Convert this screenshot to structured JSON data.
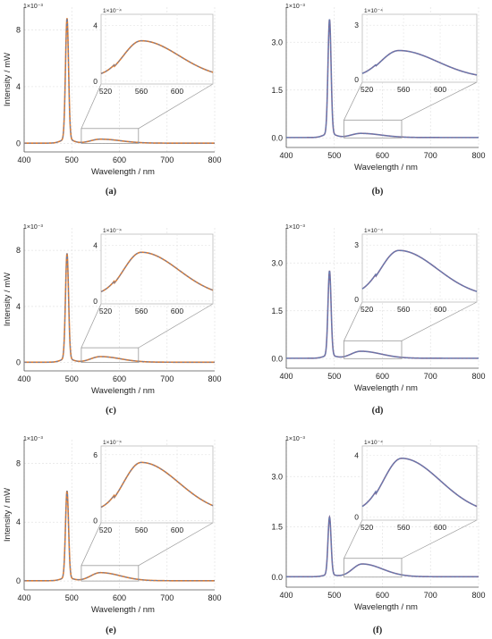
{
  "figure": {
    "panels": [
      {
        "label": "(a)",
        "chart_data": {
          "type": "line",
          "xlabel": "Wavelength / nm",
          "ylabel": "Intensity / mW",
          "scale_label": "1×10⁻³",
          "xlim": [
            400,
            800
          ],
          "ylim": [
            -0.6,
            9.6
          ],
          "xticks": [
            400,
            500,
            600,
            700,
            800
          ],
          "yticks": [
            0,
            4,
            8
          ],
          "ytick_labels": [
            "0",
            "4",
            "8"
          ],
          "grid": true,
          "peak": {
            "center": 490,
            "height": 8.5
          },
          "emission": {
            "center": 560,
            "height": 0.28
          },
          "baseline": 0.05,
          "inset": {
            "scale_label": "1×10⁻⁴",
            "xlim": [
              515,
              640
            ],
            "ylim": [
              -0.2,
              4.8
            ],
            "xticks": [
              520,
              560,
              600
            ],
            "yticks": [
              0,
              4
            ],
            "ytick_labels": [
              "0",
              "4"
            ],
            "peak_height": 2.9,
            "end_value": 0.2
          },
          "zoom_box": {
            "x": [
              520,
              640
            ],
            "y": [
              0,
              1.05
            ]
          }
        }
      },
      {
        "label": "(b)",
        "chart_data": {
          "type": "line",
          "xlabel": "Wavelength / nm",
          "ylabel": "",
          "scale_label": "1×10⁻³",
          "xlim": [
            400,
            800
          ],
          "ylim": [
            -0.3,
            4.1
          ],
          "xticks": [
            400,
            500,
            600,
            700,
            800
          ],
          "yticks": [
            0,
            1.5,
            3.0
          ],
          "ytick_labels": [
            "0.0",
            "1.5",
            "3.0"
          ],
          "grid": true,
          "peak": {
            "center": 490,
            "height": 3.58
          },
          "emission": {
            "center": 555,
            "height": 0.13
          },
          "baseline": 0.03,
          "inset": {
            "scale_label": "1×10⁻⁴",
            "xlim": [
              515,
              640
            ],
            "ylim": [
              -0.15,
              3.6
            ],
            "xticks": [
              520,
              560,
              600
            ],
            "yticks": [
              0,
              3
            ],
            "ytick_labels": [
              "0",
              "3"
            ],
            "peak_height": 1.6,
            "end_value": 0.05
          },
          "zoom_box": {
            "x": [
              520,
              640
            ],
            "y": [
              0,
              0.56
            ]
          }
        }
      },
      {
        "label": "(c)",
        "chart_data": {
          "type": "line",
          "xlabel": "Wavelength / nm",
          "ylabel": "Intensity / mW",
          "scale_label": "1×10⁻³",
          "xlim": [
            400,
            800
          ],
          "ylim": [
            -0.6,
            9.6
          ],
          "xticks": [
            400,
            500,
            600,
            700,
            800
          ],
          "yticks": [
            0,
            4,
            8
          ],
          "ytick_labels": [
            "0",
            "4",
            "8"
          ],
          "grid": true,
          "peak": {
            "center": 490,
            "height": 7.5
          },
          "emission": {
            "center": 560,
            "height": 0.4
          },
          "baseline": 0.05,
          "inset": {
            "scale_label": "1×10⁻⁴",
            "xlim": [
              515,
              640
            ],
            "ylim": [
              -0.2,
              4.8
            ],
            "xticks": [
              520,
              560,
              600
            ],
            "yticks": [
              0,
              4
            ],
            "ytick_labels": [
              "0",
              "4"
            ],
            "peak_height": 3.5,
            "end_value": 0.25
          },
          "zoom_box": {
            "x": [
              520,
              640
            ],
            "y": [
              0,
              1.05
            ]
          }
        }
      },
      {
        "label": "(d)",
        "chart_data": {
          "type": "line",
          "xlabel": "Wavelength / nm",
          "ylabel": "",
          "scale_label": "1×10⁻³",
          "xlim": [
            400,
            800
          ],
          "ylim": [
            -0.3,
            4.1
          ],
          "xticks": [
            400,
            500,
            600,
            700,
            800
          ],
          "yticks": [
            0,
            1.5,
            3.0
          ],
          "ytick_labels": [
            "0.0",
            "1.5",
            "3.0"
          ],
          "grid": true,
          "peak": {
            "center": 490,
            "height": 2.65
          },
          "emission": {
            "center": 555,
            "height": 0.22
          },
          "baseline": 0.03,
          "inset": {
            "scale_label": "1×10⁻⁴",
            "xlim": [
              515,
              640
            ],
            "ylim": [
              -0.15,
              3.6
            ],
            "xticks": [
              520,
              560,
              600
            ],
            "yticks": [
              0,
              3
            ],
            "ytick_labels": [
              "0",
              "3"
            ],
            "peak_height": 2.7,
            "end_value": 0.1
          },
          "zoom_box": {
            "x": [
              520,
              640
            ],
            "y": [
              0,
              0.56
            ]
          }
        }
      },
      {
        "label": "(e)",
        "chart_data": {
          "type": "line",
          "xlabel": "Wavelength / nm",
          "ylabel": "Intensity / mW",
          "scale_label": "1×10⁻³",
          "xlim": [
            400,
            800
          ],
          "ylim": [
            -0.6,
            9.6
          ],
          "xticks": [
            400,
            500,
            600,
            700,
            800
          ],
          "yticks": [
            0,
            4,
            8
          ],
          "ytick_labels": [
            "0",
            "4",
            "8"
          ],
          "grid": true,
          "peak": {
            "center": 490,
            "height": 5.9
          },
          "emission": {
            "center": 560,
            "height": 0.55
          },
          "baseline": 0.05,
          "inset": {
            "scale_label": "1×10⁻⁴",
            "xlim": [
              515,
              640
            ],
            "ylim": [
              -0.2,
              6.8
            ],
            "xticks": [
              520,
              560,
              600
            ],
            "yticks": [
              0,
              6
            ],
            "ytick_labels": [
              "0",
              "6"
            ],
            "peak_height": 5.3,
            "end_value": 0.6
          },
          "zoom_box": {
            "x": [
              520,
              640
            ],
            "y": [
              0,
              1.05
            ]
          }
        }
      },
      {
        "label": "(f)",
        "chart_data": {
          "type": "line",
          "xlabel": "Wavelength / nm",
          "ylabel": "",
          "scale_label": "1×10⁻³",
          "xlim": [
            400,
            800
          ],
          "ylim": [
            -0.3,
            4.1
          ],
          "xticks": [
            400,
            500,
            600,
            700,
            800
          ],
          "yticks": [
            0,
            1.5,
            3.0
          ],
          "ytick_labels": [
            "0.0",
            "1.5",
            "3.0"
          ],
          "grid": true,
          "peak": {
            "center": 490,
            "height": 1.72
          },
          "emission": {
            "center": 558,
            "height": 0.38
          },
          "baseline": 0.03,
          "inset": {
            "scale_label": "1×10⁻⁴",
            "xlim": [
              515,
              640
            ],
            "ylim": [
              -0.2,
              4.6
            ],
            "xticks": [
              520,
              560,
              600
            ],
            "yticks": [
              0,
              4
            ],
            "ytick_labels": [
              "0",
              "4"
            ],
            "peak_height": 3.8,
            "end_value": 0.15
          },
          "zoom_box": {
            "x": [
              520,
              640
            ],
            "y": [
              0,
              0.56
            ]
          }
        }
      }
    ],
    "colors": {
      "measured_left": "#e07b2c",
      "measured_right": "#7a6b9a",
      "fit": "#5f7fb5",
      "axis": "#555555",
      "grid": "#e3e3e3",
      "zoom": "#999999",
      "text": "#222222"
    }
  }
}
